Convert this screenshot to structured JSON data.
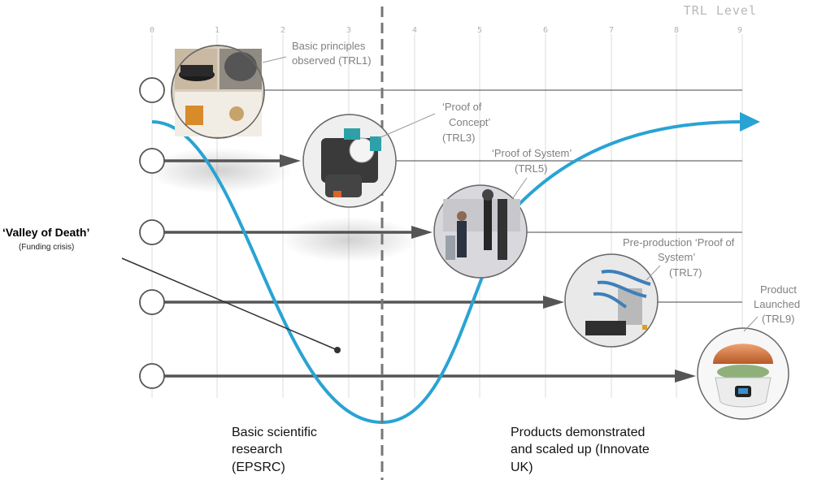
{
  "axis": {
    "title": "TRL Level",
    "ticks": [
      "0",
      "1",
      "2",
      "3",
      "4",
      "5",
      "6",
      "7",
      "8",
      "9"
    ]
  },
  "stages": [
    {
      "line1": "Basic principles",
      "line2": "observed (TRL1)",
      "line3": ""
    },
    {
      "line1": "‘Proof of",
      "line2": "Concept’",
      "line3": "(TRL3)"
    },
    {
      "line1": "‘Proof of System’",
      "line2": "(TRL5)",
      "line3": ""
    },
    {
      "line1": "Pre-production ‘Proof  of",
      "line2": "System’",
      "line3": "(TRL7)"
    },
    {
      "line1": "Product",
      "line2": "Launched",
      "line3": "(TRL9)"
    }
  ],
  "valley": {
    "title": "‘Valley of Death’",
    "subtitle": "(Funding crisis)"
  },
  "left_label": {
    "line1": "Basic scientific",
    "line2": "research",
    "line3": "(EPSRC)"
  },
  "right_label": {
    "line1": "Products demonstrated",
    "line2": "and scaled up (Innovate",
    "line3": "UK)"
  },
  "colors": {
    "curve": "#29a3d4",
    "arrow": "#555555",
    "grid": "#e3e3e3",
    "divider": "#777777"
  }
}
